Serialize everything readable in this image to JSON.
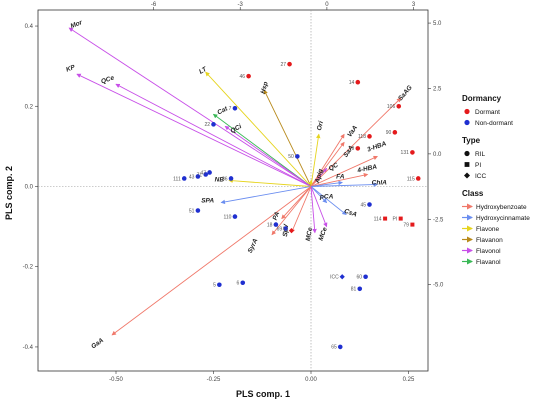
{
  "chart_data": {
    "type": "scatter",
    "subtype": "biplot",
    "xlabel": "PLS comp. 1",
    "ylabel": "PLS comp. 2",
    "xlim": [
      -0.7,
      0.3
    ],
    "ylim": [
      -0.46,
      0.44
    ],
    "x_ticks": [
      "-0.50",
      "-0.25",
      "0.00",
      "0.25"
    ],
    "x_tick_values": [
      -0.5,
      -0.25,
      0.0,
      0.25
    ],
    "y_ticks": [
      "-0.4",
      "-0.2",
      "0.0",
      "0.2",
      "0.4"
    ],
    "y_tick_values": [
      -0.4,
      -0.2,
      0.0,
      0.2,
      0.4
    ],
    "top_axis": {
      "range": [
        -10,
        3.5
      ],
      "ticks": [
        "-6",
        "-3",
        "0",
        "3"
      ],
      "tick_values": [
        -6,
        -3,
        0,
        3
      ]
    },
    "right_axis": {
      "range": [
        -8.3,
        5.5
      ],
      "ticks": [
        "-5.0",
        "-2.5",
        "0.0",
        "2.5",
        "5.0"
      ],
      "tick_values": [
        -5.0,
        -2.5,
        0.0,
        2.5,
        5.0
      ]
    },
    "grid": false,
    "zero_lines": "dotted",
    "legend_position": "right",
    "legend": {
      "dormancy_title": "Dormancy",
      "dormancy": [
        {
          "label": "Dormant",
          "color": "#e41a1c"
        },
        {
          "label": "Non-dormant",
          "color": "#1f2fd0"
        }
      ],
      "type_title": "Type",
      "types": [
        {
          "label": "RIL",
          "shape": "circle"
        },
        {
          "label": "PI",
          "shape": "square"
        },
        {
          "label": "ICC",
          "shape": "diamond"
        }
      ],
      "class_title": "Class",
      "classes": [
        {
          "label": "Hydroxybenzoate",
          "color": "#f0786a"
        },
        {
          "label": "Hydroxycinnamate",
          "color": "#6b8ef0"
        },
        {
          "label": "Flavone",
          "color": "#e6d41e"
        },
        {
          "label": "Flavanon",
          "color": "#b88a1c"
        },
        {
          "label": "Flavonol",
          "color": "#c850e8"
        },
        {
          "label": "Flavanol",
          "color": "#3ab856"
        }
      ]
    },
    "loadings": [
      {
        "label": "Mor",
        "class": "Flavonol",
        "x": -0.62,
        "y": 0.395,
        "lx": -0.6,
        "ly": 0.4,
        "rot": 22
      },
      {
        "label": "KP",
        "class": "Flavonol",
        "x": -0.6,
        "y": 0.28,
        "lx": -0.615,
        "ly": 0.29,
        "rot": 20
      },
      {
        "label": "QCe",
        "class": "Flavonol",
        "x": -0.5,
        "y": 0.255,
        "lx": -0.52,
        "ly": 0.262,
        "rot": 20
      },
      {
        "label": "LT",
        "class": "Flavone",
        "x": -0.27,
        "y": 0.285,
        "lx": -0.275,
        "ly": 0.285,
        "rot": 30
      },
      {
        "label": "Cat",
        "class": "Flavanol",
        "x": -0.25,
        "y": 0.18,
        "lx": -0.225,
        "ly": 0.185,
        "rot": 28
      },
      {
        "label": "QCi",
        "class": "Flavonol",
        "x": -0.22,
        "y": 0.15,
        "lx": -0.19,
        "ly": 0.14,
        "rot": 30
      },
      {
        "label": "Hsp",
        "class": "Flavanon",
        "x": -0.12,
        "y": 0.24,
        "lx": -0.115,
        "ly": 0.245,
        "rot": 75
      },
      {
        "label": "Ori",
        "class": "Flavone",
        "x": 0.02,
        "y": 0.13,
        "lx": 0.028,
        "ly": 0.15,
        "rot": 75
      },
      {
        "label": "Apig",
        "class": "Flavone",
        "x": 0.0,
        "y": 0.015,
        "lx": 0.025,
        "ly": 0.025,
        "rot": 75
      },
      {
        "label": "QC",
        "class": "Flavonol",
        "x": 0.04,
        "y": 0.045,
        "lx": 0.06,
        "ly": 0.045,
        "rot": 30
      },
      {
        "label": "VaA",
        "class": "Hydroxybenzoate",
        "x": 0.085,
        "y": 0.13,
        "lx": 0.11,
        "ly": 0.135,
        "rot": 55
      },
      {
        "label": "SaA",
        "class": "Hydroxybenzoate",
        "x": 0.085,
        "y": 0.11,
        "lx": 0.1,
        "ly": 0.085,
        "rot": 55
      },
      {
        "label": "SaAG",
        "class": "Hydroxybenzoate",
        "x": 0.23,
        "y": 0.22,
        "lx": 0.245,
        "ly": 0.23,
        "rot": 50
      },
      {
        "label": "3-HBA",
        "class": "Hydroxybenzoate",
        "x": 0.17,
        "y": 0.075,
        "lx": 0.17,
        "ly": 0.095,
        "rot": 20
      },
      {
        "label": "4-HBA",
        "class": "Hydroxybenzoate",
        "x": 0.145,
        "y": 0.03,
        "lx": 0.145,
        "ly": 0.04,
        "rot": 12
      },
      {
        "label": "FA",
        "class": "Hydroxycinnamate",
        "x": 0.08,
        "y": 0.01,
        "lx": 0.075,
        "ly": 0.02,
        "rot": 0
      },
      {
        "label": "ChIA",
        "class": "Hydroxycinnamate",
        "x": 0.17,
        "y": 0.005,
        "lx": 0.175,
        "ly": 0.005,
        "rot": 0
      },
      {
        "label": "pCA",
        "class": "Hydroxycinnamate",
        "x": 0.04,
        "y": -0.04,
        "lx": 0.04,
        "ly": -0.03,
        "rot": 0
      },
      {
        "label": "CsA",
        "class": "Hydroxycinnamate",
        "x": 0.09,
        "y": -0.07,
        "lx": 0.1,
        "ly": -0.07,
        "rot": -20
      },
      {
        "label": "PA",
        "class": "Hydroxybenzoate",
        "x": -0.075,
        "y": -0.08,
        "lx": -0.085,
        "ly": -0.075,
        "rot": 70
      },
      {
        "label": "SpV",
        "class": "Hydroxybenzoate",
        "x": -0.05,
        "y": -0.115,
        "lx": -0.06,
        "ly": -0.11,
        "rot": 85
      },
      {
        "label": "MCe",
        "class": "Flavonol",
        "x": 0.01,
        "y": -0.115,
        "lx": 0.0,
        "ly": -0.12,
        "rot": 80
      },
      {
        "label": "MCe",
        "class": "Flavonol",
        "x": 0.04,
        "y": -0.1,
        "lx": 0.035,
        "ly": -0.12,
        "rot": 70
      },
      {
        "label": "NB",
        "class": "Flavone",
        "x": -0.21,
        "y": 0.015,
        "lx": -0.235,
        "ly": 0.012,
        "rot": 0
      },
      {
        "label": "SPA",
        "class": "Hydroxycinnamate",
        "x": -0.23,
        "y": -0.04,
        "lx": -0.265,
        "ly": -0.04,
        "rot": 0
      },
      {
        "label": "SyrA",
        "class": "Hydroxybenzoate",
        "x": -0.1,
        "y": -0.12,
        "lx": -0.145,
        "ly": -0.15,
        "rot": 65
      },
      {
        "label": "GaA",
        "class": "Hydroxybenzoate",
        "x": -0.51,
        "y": -0.37,
        "lx": -0.545,
        "ly": -0.395,
        "rot": 35
      }
    ],
    "samples": [
      {
        "label": "27",
        "dormancy": "Dormant",
        "type": "RIL",
        "x": -0.055,
        "y": 0.305
      },
      {
        "label": "46",
        "dormancy": "Dormant",
        "type": "RIL",
        "x": -0.16,
        "y": 0.275
      },
      {
        "label": "14",
        "dormancy": "Dormant",
        "type": "RIL",
        "x": 0.12,
        "y": 0.26
      },
      {
        "label": "7",
        "dormancy": "Non-dormant",
        "type": "RIL",
        "x": -0.195,
        "y": 0.195
      },
      {
        "label": "106",
        "dormancy": "Dormant",
        "type": "RIL",
        "x": 0.225,
        "y": 0.2
      },
      {
        "label": "22",
        "dormancy": "Non-dormant",
        "type": "RIL",
        "x": -0.25,
        "y": 0.155
      },
      {
        "label": "90",
        "dormancy": "Dormant",
        "type": "RIL",
        "x": 0.215,
        "y": 0.135
      },
      {
        "label": "118",
        "dormancy": "Dormant",
        "type": "RIL",
        "x": 0.15,
        "y": 0.125
      },
      {
        "label": "9",
        "dormancy": "Dormant",
        "type": "RIL",
        "x": 0.12,
        "y": 0.095
      },
      {
        "label": "131",
        "dormancy": "Dormant",
        "type": "RIL",
        "x": 0.26,
        "y": 0.085
      },
      {
        "label": "50",
        "dormancy": "Non-dormant",
        "type": "RIL",
        "x": -0.035,
        "y": 0.075
      },
      {
        "label": "111",
        "dormancy": "Non-dormant",
        "type": "RIL",
        "x": -0.325,
        "y": 0.02
      },
      {
        "label": "43",
        "dormancy": "Non-dormant",
        "type": "RIL",
        "x": -0.29,
        "y": 0.025
      },
      {
        "label": "71",
        "dormancy": "Non-dormant",
        "type": "RIL",
        "x": -0.27,
        "y": 0.03
      },
      {
        "label": "47",
        "dormancy": "Non-dormant",
        "type": "RIL",
        "x": -0.26,
        "y": 0.035
      },
      {
        "label": "86",
        "dormancy": "Non-dormant",
        "type": "RIL",
        "x": -0.205,
        "y": 0.02
      },
      {
        "label": "115",
        "dormancy": "Dormant",
        "type": "RIL",
        "x": 0.275,
        "y": 0.02
      },
      {
        "label": "45",
        "dormancy": "Non-dormant",
        "type": "RIL",
        "x": 0.15,
        "y": -0.045
      },
      {
        "label": "51",
        "dormancy": "Non-dormant",
        "type": "RIL",
        "x": -0.29,
        "y": -0.06
      },
      {
        "label": "110",
        "dormancy": "Non-dormant",
        "type": "RIL",
        "x": -0.195,
        "y": -0.075
      },
      {
        "label": "114",
        "dormancy": "Dormant",
        "type": "PI",
        "x": 0.19,
        "y": -0.08
      },
      {
        "label": "PI",
        "dormancy": "Dormant",
        "type": "PI",
        "x": 0.23,
        "y": -0.08
      },
      {
        "label": "79",
        "dormancy": "Dormant",
        "type": "PI",
        "x": 0.26,
        "y": -0.095
      },
      {
        "label": "18",
        "dormancy": "Non-dormant",
        "type": "RIL",
        "x": -0.09,
        "y": -0.095
      },
      {
        "label": "69",
        "dormancy": "Non-dormant",
        "type": "RIL",
        "x": -0.065,
        "y": -0.105
      },
      {
        "label": "27",
        "dormancy": "Dormant",
        "type": "ICC",
        "x": -0.05,
        "y": -0.11
      },
      {
        "label": "ICC",
        "dormancy": "Non-dormant",
        "type": "ICC",
        "x": 0.08,
        "y": -0.225
      },
      {
        "label": "60",
        "dormancy": "Non-dormant",
        "type": "RIL",
        "x": 0.14,
        "y": -0.225
      },
      {
        "label": "81",
        "dormancy": "Non-dormant",
        "type": "RIL",
        "x": 0.125,
        "y": -0.255
      },
      {
        "label": "5",
        "dormancy": "Non-dormant",
        "type": "RIL",
        "x": -0.235,
        "y": -0.245
      },
      {
        "label": "6",
        "dormancy": "Non-dormant",
        "type": "RIL",
        "x": -0.175,
        "y": -0.24
      },
      {
        "label": "65",
        "dormancy": "Non-dormant",
        "type": "RIL",
        "x": 0.075,
        "y": -0.4
      }
    ]
  }
}
